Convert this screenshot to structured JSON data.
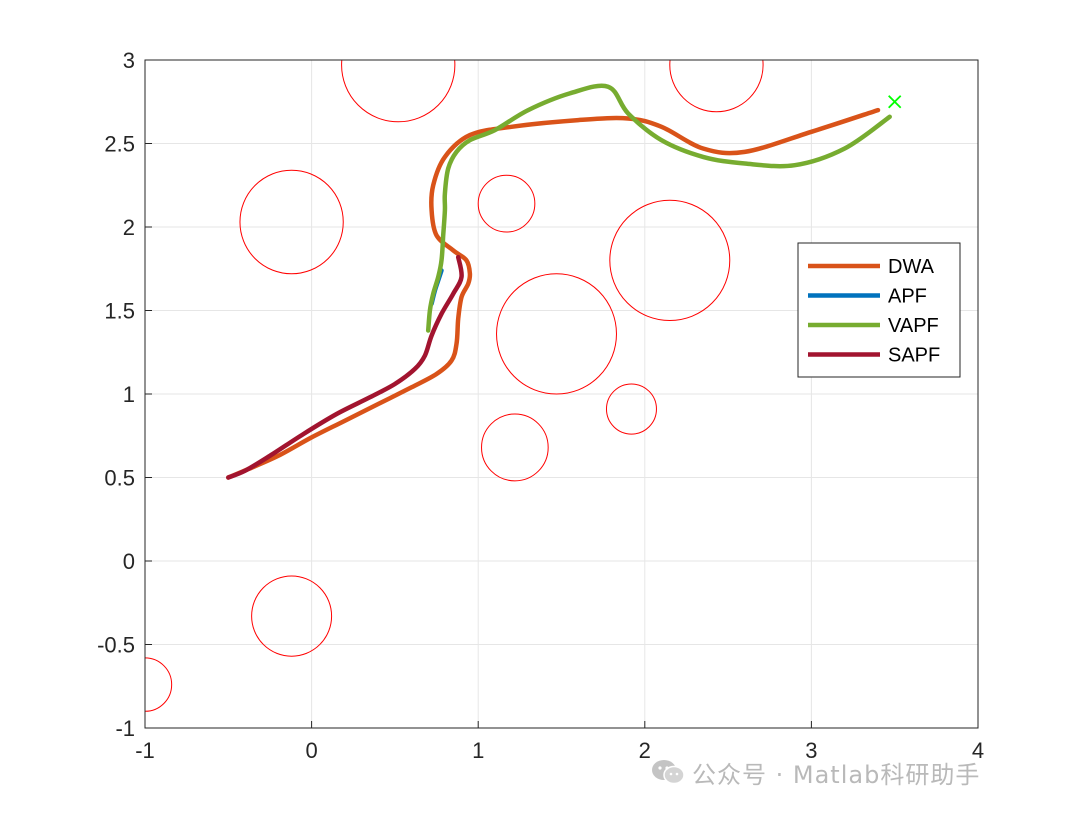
{
  "chart_data": {
    "type": "line",
    "title": "",
    "xlabel": "",
    "ylabel": "",
    "xlim": [
      -1,
      4
    ],
    "ylim": [
      -1,
      3
    ],
    "grid": true,
    "legend_position": "right",
    "x_ticks": [
      -1,
      0,
      1,
      2,
      3,
      4
    ],
    "x_tick_labels": [
      "-1",
      "0",
      "1",
      "2",
      "3",
      "4"
    ],
    "y_ticks": [
      -1,
      -0.5,
      0,
      0.5,
      1,
      1.5,
      2,
      2.5,
      3
    ],
    "y_tick_labels": [
      "-1",
      "-0.5",
      "0",
      "0.5",
      "1",
      "1.5",
      "2",
      "2.5",
      "3"
    ],
    "obstacles": [
      {
        "cx": 0.52,
        "cy": 2.97,
        "r": 0.34
      },
      {
        "cx": 2.43,
        "cy": 2.97,
        "r": 0.28
      },
      {
        "cx": -0.12,
        "cy": 2.03,
        "r": 0.31
      },
      {
        "cx": 1.17,
        "cy": 2.14,
        "r": 0.17
      },
      {
        "cx": 2.15,
        "cy": 1.8,
        "r": 0.36
      },
      {
        "cx": 1.47,
        "cy": 1.36,
        "r": 0.36
      },
      {
        "cx": 1.92,
        "cy": 0.91,
        "r": 0.15
      },
      {
        "cx": 1.22,
        "cy": 0.68,
        "r": 0.2
      },
      {
        "cx": -0.12,
        "cy": -0.33,
        "r": 0.24
      },
      {
        "cx": -1.0,
        "cy": -0.74,
        "r": 0.16
      }
    ],
    "obstacle_color": "#ff0000",
    "goal": {
      "x": 3.5,
      "y": 2.75,
      "marker": "x",
      "color": "#00ff00"
    },
    "series": [
      {
        "name": "DWA",
        "color": "#d95319",
        "x": [
          -0.5,
          -0.38,
          -0.2,
          0.0,
          0.2,
          0.4,
          0.6,
          0.75,
          0.84,
          0.87,
          0.88,
          0.9,
          0.94,
          0.95,
          0.93,
          0.85,
          0.75,
          0.72,
          0.73,
          0.8,
          0.95,
          1.2,
          1.6,
          1.9,
          2.1,
          2.35,
          2.6,
          3.0,
          3.4
        ],
        "y": [
          0.5,
          0.55,
          0.63,
          0.74,
          0.84,
          0.94,
          1.04,
          1.12,
          1.2,
          1.3,
          1.45,
          1.58,
          1.66,
          1.72,
          1.8,
          1.86,
          1.95,
          2.1,
          2.25,
          2.42,
          2.55,
          2.6,
          2.64,
          2.65,
          2.6,
          2.47,
          2.45,
          2.57,
          2.7
        ]
      },
      {
        "name": "APF",
        "color": "#0072bd",
        "x": [
          0.72,
          0.74,
          0.76,
          0.78
        ],
        "y": [
          1.54,
          1.62,
          1.68,
          1.74
        ]
      },
      {
        "name": "VAPF",
        "color": "#77ac30",
        "x": [
          0.7,
          0.71,
          0.73,
          0.76,
          0.78,
          0.79,
          0.8,
          0.8,
          0.82,
          0.87,
          0.95,
          1.1,
          1.3,
          1.55,
          1.78,
          1.9,
          2.1,
          2.35,
          2.6,
          2.9,
          3.2,
          3.47
        ],
        "y": [
          1.38,
          1.5,
          1.6,
          1.7,
          1.8,
          1.95,
          2.1,
          2.2,
          2.35,
          2.45,
          2.52,
          2.58,
          2.7,
          2.8,
          2.84,
          2.68,
          2.52,
          2.42,
          2.38,
          2.37,
          2.47,
          2.66
        ]
      },
      {
        "name": "SAPF",
        "color": "#a2142f",
        "x": [
          -0.5,
          -0.4,
          -0.25,
          -0.05,
          0.15,
          0.35,
          0.5,
          0.62,
          0.68,
          0.72,
          0.78,
          0.85,
          0.9,
          0.88
        ],
        "y": [
          0.5,
          0.54,
          0.63,
          0.76,
          0.88,
          0.98,
          1.06,
          1.15,
          1.23,
          1.35,
          1.48,
          1.6,
          1.7,
          1.82
        ]
      }
    ]
  },
  "watermark": {
    "text": "公众号 · Matlab科研助手",
    "icon": "wechat-icon"
  }
}
